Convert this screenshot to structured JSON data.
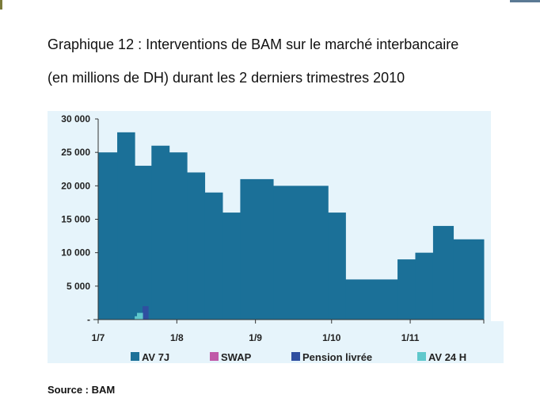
{
  "title_line1": "Graphique 12 : Interventions de BAM sur le marché interbancaire",
  "title_line2": "(en millions de DH) durant les 2 derniers trimestres 2010",
  "source": "Source : BAM",
  "chart_data": {
    "type": "area",
    "title": "Interventions de BAM sur le marché interbancaire (en millions de DH) durant les 2 derniers trimestres 2010",
    "xlabel": "",
    "ylabel": "",
    "ylim": [
      0,
      30000
    ],
    "x_range_days_from_1_7": [
      0,
      152
    ],
    "y_ticks": [
      {
        "value": 0,
        "label": "-"
      },
      {
        "value": 5000,
        "label": "5 000"
      },
      {
        "value": 10000,
        "label": "10 000"
      },
      {
        "value": 15000,
        "label": "15 000"
      },
      {
        "value": 20000,
        "label": "20 000"
      },
      {
        "value": 25000,
        "label": "25 000"
      },
      {
        "value": 30000,
        "label": "30 000"
      }
    ],
    "x_ticks": [
      {
        "day": 0,
        "label": "1/7"
      },
      {
        "day": 31,
        "label": "1/8"
      },
      {
        "day": 62,
        "label": "1/9"
      },
      {
        "day": 92,
        "label": "1/10"
      },
      {
        "day": 123,
        "label": "1/11"
      },
      {
        "day": 152,
        "label": ""
      }
    ],
    "series": [
      {
        "name": "AV 7J",
        "color": "#1b7098",
        "steps": [
          [
            0,
            25000
          ],
          [
            7.5,
            28000
          ],
          [
            14.4,
            23000
          ],
          [
            21,
            26000
          ],
          [
            28,
            25000
          ],
          [
            35,
            22000
          ],
          [
            42,
            19000
          ],
          [
            49,
            16000
          ],
          [
            56,
            21000
          ],
          [
            69,
            20000
          ],
          [
            90.6,
            16000
          ],
          [
            97.5,
            6000
          ],
          [
            118,
            9000
          ],
          [
            125,
            10000
          ],
          [
            132,
            14000
          ],
          [
            140,
            12000
          ],
          [
            152,
            12000
          ]
        ]
      },
      {
        "name": "SWAP",
        "color": "#c05aa8",
        "steps": []
      },
      {
        "name": "Pension livrée",
        "color": "#2f4fa0",
        "steps": [
          [
            17.5,
            2000
          ],
          [
            19.7,
            0
          ]
        ]
      },
      {
        "name": "AV 24 H",
        "color": "#5fc8cc",
        "steps": [
          [
            14.4,
            500
          ],
          [
            15.3,
            1000
          ],
          [
            17.5,
            0
          ]
        ]
      }
    ],
    "legend_position": "bottom",
    "grid": false
  }
}
